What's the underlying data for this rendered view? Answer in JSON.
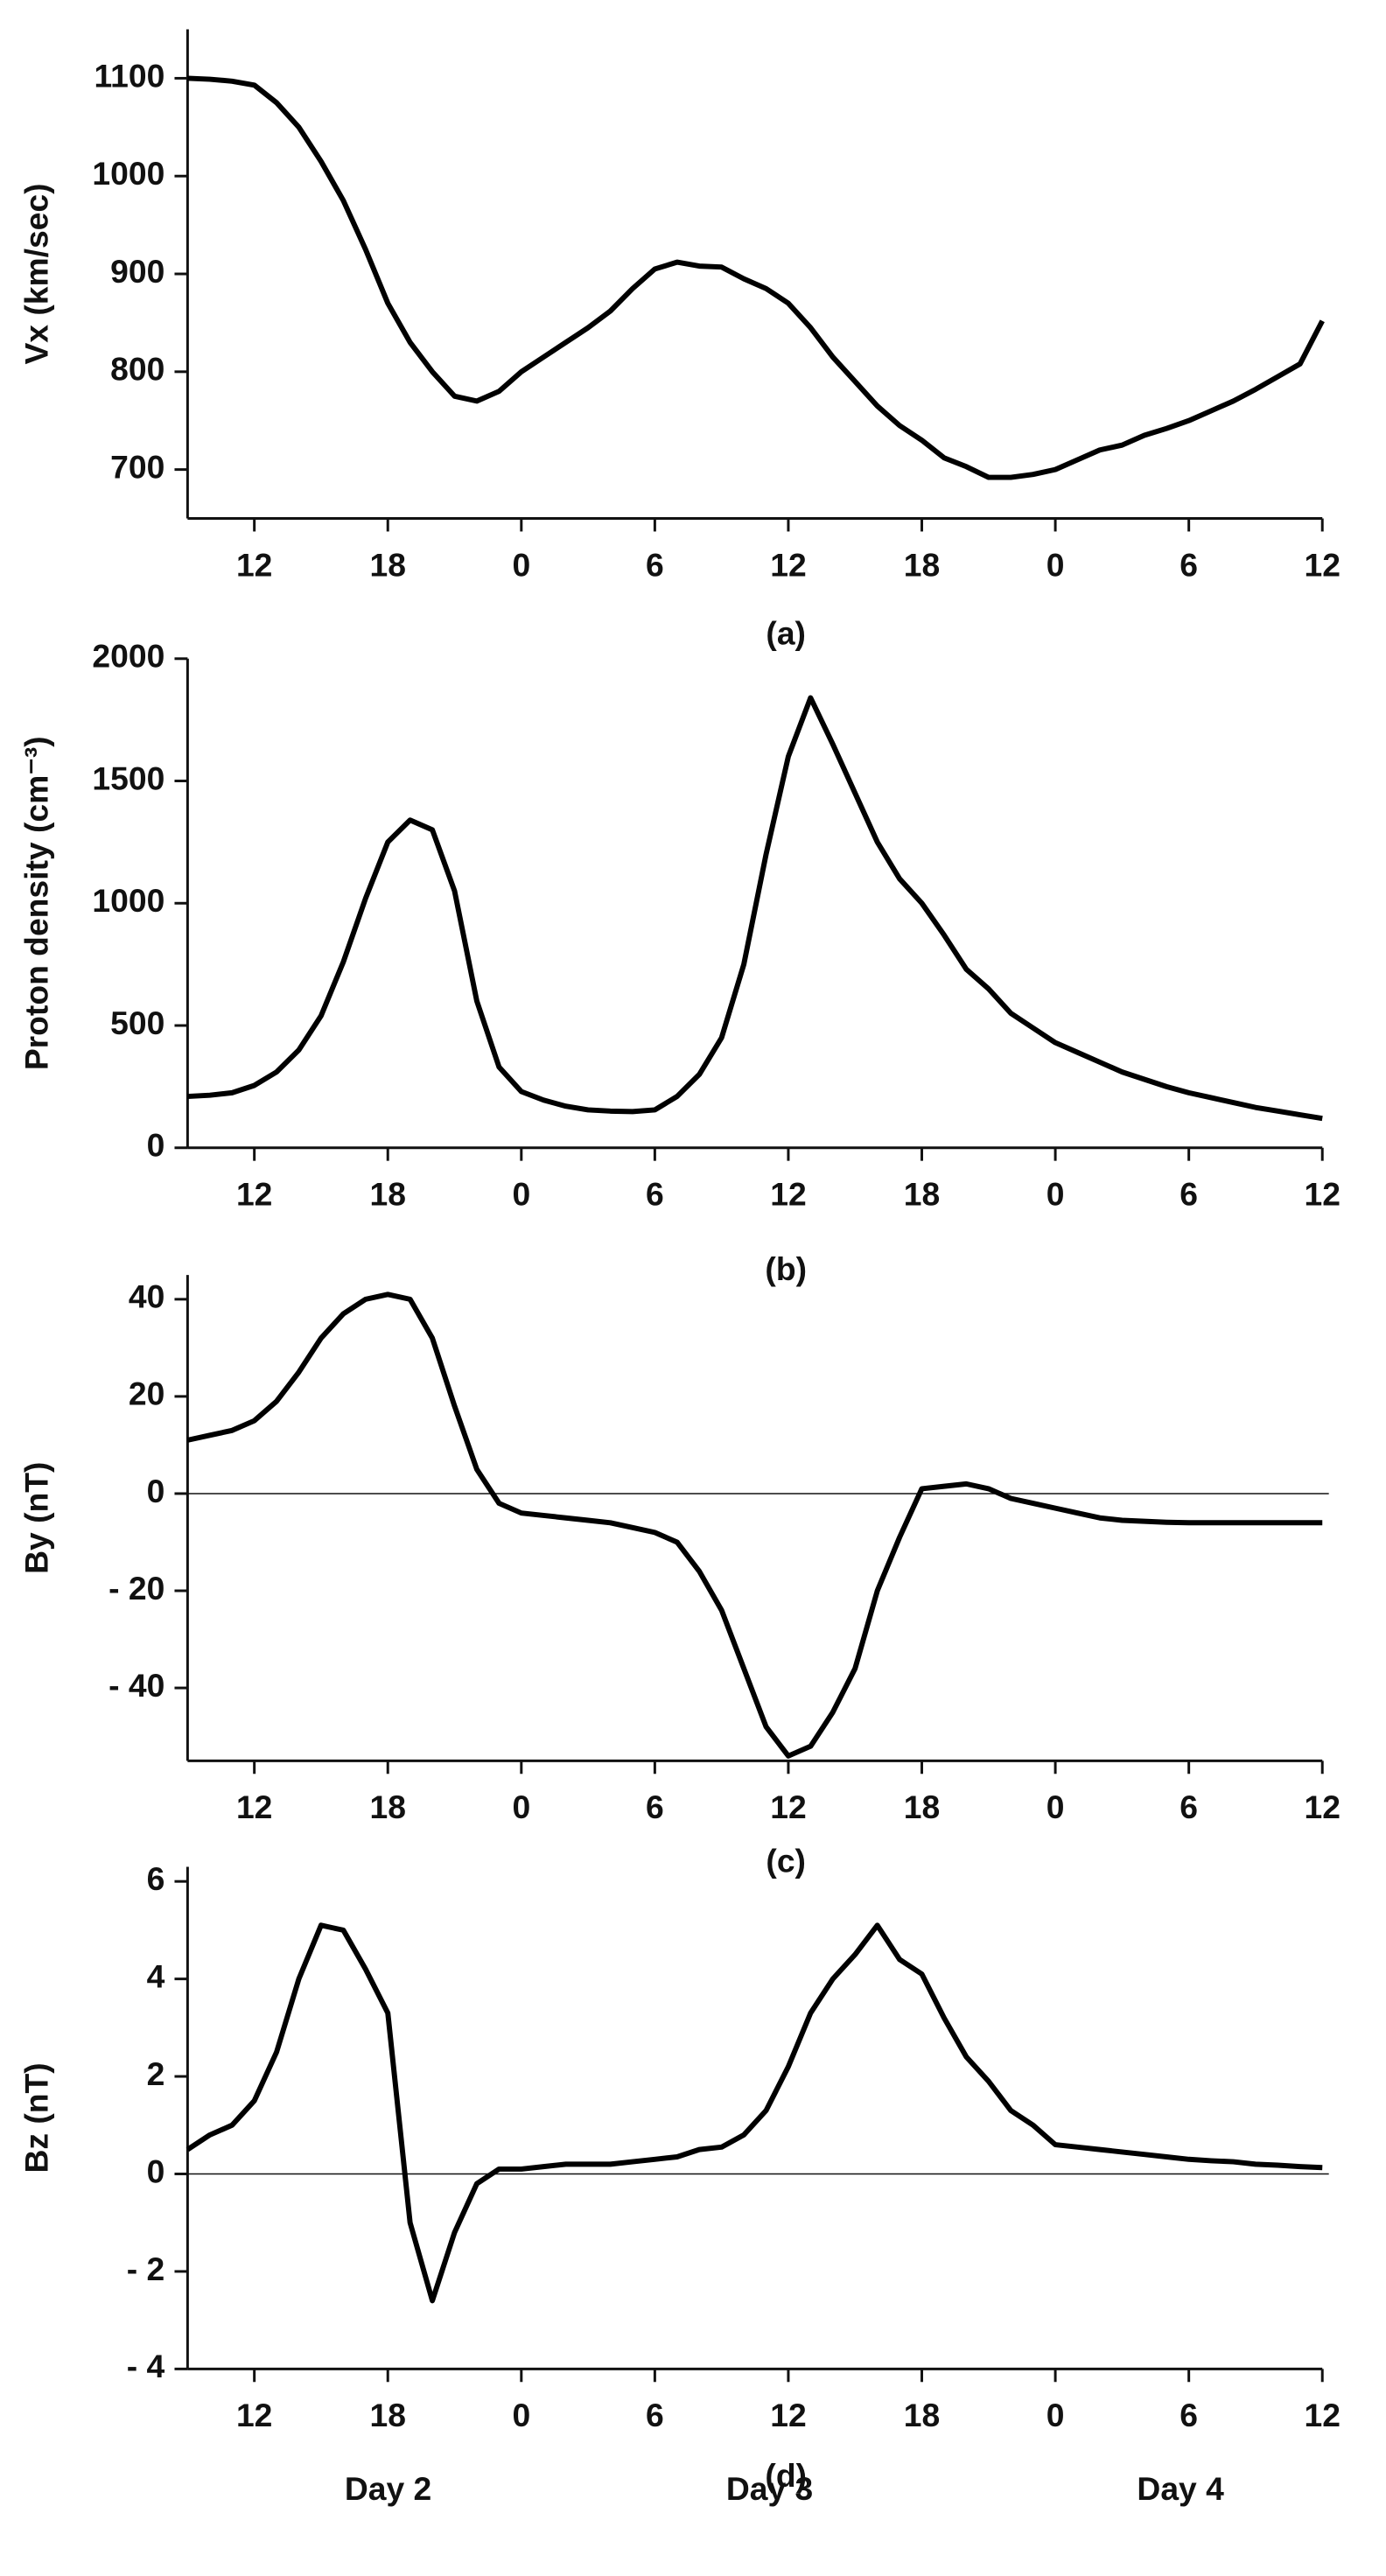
{
  "chart_data": [
    {
      "type": "line",
      "ylabel": "Vx (km/sec)",
      "caption": "(a)",
      "x": [
        9,
        10,
        11,
        12,
        13,
        14,
        15,
        16,
        17,
        18,
        19,
        20,
        21,
        22,
        23,
        24,
        25,
        26,
        27,
        28,
        29,
        30,
        31,
        32,
        33,
        34,
        35,
        36,
        37,
        38,
        39,
        40,
        41,
        42,
        43,
        44,
        45,
        46,
        47,
        48,
        49,
        50,
        51,
        52,
        53,
        54,
        55,
        56,
        57,
        58,
        59,
        60
      ],
      "values": [
        1100,
        1099,
        1097,
        1093,
        1075,
        1050,
        1015,
        975,
        925,
        870,
        830,
        800,
        775,
        770,
        780,
        800,
        815,
        830,
        845,
        862,
        885,
        905,
        912,
        908,
        907,
        895,
        885,
        870,
        845,
        815,
        790,
        765,
        745,
        730,
        712,
        703,
        692,
        692,
        695,
        700,
        710,
        720,
        725,
        735,
        742,
        750,
        760,
        770,
        782,
        795,
        808,
        852
      ],
      "xlim": [
        9,
        60
      ],
      "xticks": [
        12,
        18,
        {
          "value": 24,
          "label": "0"
        },
        {
          "value": 30,
          "label": "6"
        },
        {
          "value": 36,
          "label": "12"
        },
        {
          "value": 42,
          "label": "18"
        },
        {
          "value": 48,
          "label": "0"
        },
        {
          "value": 54,
          "label": "6"
        },
        {
          "value": 60,
          "label": "12"
        }
      ],
      "ylim": [
        650,
        1150
      ],
      "yticks": [
        700,
        800,
        900,
        1000,
        1100
      ],
      "color": "#000000"
    },
    {
      "type": "line",
      "ylabel": "Proton density (cm⁻³)",
      "caption": "(b)",
      "x": [
        9,
        10,
        11,
        12,
        13,
        14,
        15,
        16,
        17,
        18,
        19,
        20,
        21,
        22,
        23,
        24,
        25,
        26,
        27,
        28,
        29,
        30,
        31,
        32,
        33,
        34,
        35,
        36,
        37,
        38,
        39,
        40,
        41,
        42,
        43,
        44,
        45,
        46,
        47,
        48,
        49,
        50,
        51,
        52,
        53,
        54,
        55,
        56,
        57,
        58,
        59,
        60
      ],
      "values": [
        210,
        215,
        225,
        255,
        310,
        400,
        540,
        760,
        1020,
        1250,
        1340,
        1300,
        1050,
        600,
        330,
        230,
        195,
        170,
        155,
        150,
        148,
        155,
        210,
        300,
        450,
        750,
        1200,
        1600,
        1840,
        1650,
        1450,
        1250,
        1100,
        1000,
        870,
        730,
        650,
        550,
        490,
        430,
        390,
        350,
        310,
        280,
        250,
        225,
        205,
        185,
        165,
        150,
        135,
        120
      ],
      "xlim": [
        9,
        60
      ],
      "xticks": [
        12,
        18,
        {
          "value": 24,
          "label": "0"
        },
        {
          "value": 30,
          "label": "6"
        },
        {
          "value": 36,
          "label": "12"
        },
        {
          "value": 42,
          "label": "18"
        },
        {
          "value": 48,
          "label": "0"
        },
        {
          "value": 54,
          "label": "6"
        },
        {
          "value": 60,
          "label": "12"
        }
      ],
      "ylim": [
        0,
        2000
      ],
      "yticks": [
        0,
        500,
        1000,
        1500,
        2000
      ],
      "color": "#000000"
    },
    {
      "type": "line",
      "ylabel": "By (nT)",
      "caption": "(c)",
      "zero_line": true,
      "x": [
        9,
        10,
        11,
        12,
        13,
        14,
        15,
        16,
        17,
        18,
        19,
        20,
        21,
        22,
        23,
        24,
        25,
        26,
        27,
        28,
        29,
        30,
        31,
        32,
        33,
        34,
        35,
        36,
        37,
        38,
        39,
        40,
        41,
        42,
        43,
        44,
        45,
        46,
        47,
        48,
        49,
        50,
        51,
        52,
        53,
        54,
        55,
        56,
        57,
        58,
        59,
        60
      ],
      "values": [
        11,
        12,
        13,
        15,
        19,
        25,
        32,
        37,
        40,
        41,
        40,
        32,
        18,
        5,
        -2,
        -4,
        -4.5,
        -5,
        -5.5,
        -6,
        -7,
        -8,
        -10,
        -16,
        -24,
        -36,
        -48,
        -54,
        -52,
        -45,
        -36,
        -20,
        -9,
        1,
        1.5,
        2,
        1,
        -1,
        -2,
        -3,
        -4,
        -5,
        -5.5,
        -5.7,
        -5.9,
        -6,
        -6,
        -6,
        -6,
        -6,
        -6,
        -6
      ],
      "xlim": [
        9,
        60
      ],
      "xticks": [
        12,
        18,
        {
          "value": 24,
          "label": "0"
        },
        {
          "value": 30,
          "label": "6"
        },
        {
          "value": 36,
          "label": "12"
        },
        {
          "value": 42,
          "label": "18"
        },
        {
          "value": 48,
          "label": "0"
        },
        {
          "value": 54,
          "label": "6"
        },
        {
          "value": 60,
          "label": "12"
        }
      ],
      "ylim": [
        -55,
        45
      ],
      "yticks": [
        {
          "value": -40,
          "label": "- 40"
        },
        {
          "value": -20,
          "label": "- 20"
        },
        0,
        20,
        40
      ],
      "color": "#000000"
    },
    {
      "type": "line",
      "ylabel": "Bz (nT)",
      "caption": "(d)",
      "zero_line": true,
      "x": [
        9,
        10,
        11,
        12,
        13,
        14,
        15,
        16,
        17,
        18,
        19,
        20,
        21,
        22,
        23,
        24,
        25,
        26,
        27,
        28,
        29,
        30,
        31,
        32,
        33,
        34,
        35,
        36,
        37,
        38,
        39,
        40,
        41,
        42,
        43,
        44,
        45,
        46,
        47,
        48,
        49,
        50,
        51,
        52,
        53,
        54,
        55,
        56,
        57,
        58,
        59,
        60
      ],
      "values": [
        0.5,
        0.8,
        1.0,
        1.5,
        2.5,
        4.0,
        5.1,
        5.0,
        4.2,
        3.3,
        -1.0,
        -2.6,
        -1.2,
        -0.2,
        0.1,
        0.1,
        0.15,
        0.2,
        0.2,
        0.2,
        0.25,
        0.3,
        0.35,
        0.5,
        0.55,
        0.8,
        1.3,
        2.2,
        3.3,
        4.0,
        4.5,
        5.1,
        4.4,
        4.1,
        3.2,
        2.4,
        1.9,
        1.3,
        1.0,
        0.6,
        0.55,
        0.5,
        0.45,
        0.4,
        0.35,
        0.3,
        0.27,
        0.25,
        0.2,
        0.18,
        0.15,
        0.13
      ],
      "xlim": [
        9,
        60
      ],
      "xticks": [
        12,
        18,
        {
          "value": 24,
          "label": "0"
        },
        {
          "value": 30,
          "label": "6"
        },
        {
          "value": 36,
          "label": "12"
        },
        {
          "value": 42,
          "label": "18"
        },
        {
          "value": 48,
          "label": "0"
        },
        {
          "value": 54,
          "label": "6"
        },
        {
          "value": 60,
          "label": "12"
        }
      ],
      "ylim": [
        -4,
        6.3
      ],
      "yticks": [
        {
          "value": -4,
          "label": "- 4"
        },
        {
          "value": -2,
          "label": "- 2"
        },
        0,
        2,
        4,
        6
      ],
      "color": "#000000",
      "annotations": [
        "Day 2",
        "Day 3",
        "Day 4"
      ]
    }
  ]
}
